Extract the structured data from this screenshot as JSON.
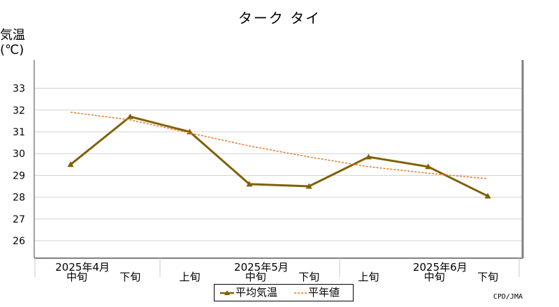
{
  "chart_data": {
    "type": "line",
    "title": "ターク タイ",
    "ylabel": "気温",
    "yunit": "(℃)",
    "ylim": [
      25.2,
      34.3
    ],
    "yticks": [
      26,
      27,
      28,
      29,
      30,
      31,
      32,
      33
    ],
    "categories": [
      "中旬",
      "下旬",
      "上旬",
      "中旬",
      "下旬",
      "上旬",
      "中旬",
      "下旬"
    ],
    "months": [
      {
        "label": "2025年4月",
        "anchor_index": 0
      },
      {
        "label": "2025年5月",
        "anchor_index": 3
      },
      {
        "label": "2025年6月",
        "anchor_index": 6
      }
    ],
    "series": [
      {
        "name": "平均気温",
        "values": [
          29.5,
          31.7,
          31.0,
          28.6,
          28.5,
          29.85,
          29.4,
          28.05
        ],
        "color": "#806000",
        "style": "solid-triangle"
      },
      {
        "name": "平年値",
        "values": [
          31.9,
          31.55,
          30.95,
          30.35,
          29.85,
          29.4,
          29.1,
          28.85
        ],
        "color": "#e87722",
        "style": "dashed"
      }
    ],
    "grid": true,
    "legend": "bottom-center"
  },
  "credit": "CPD/JMA"
}
